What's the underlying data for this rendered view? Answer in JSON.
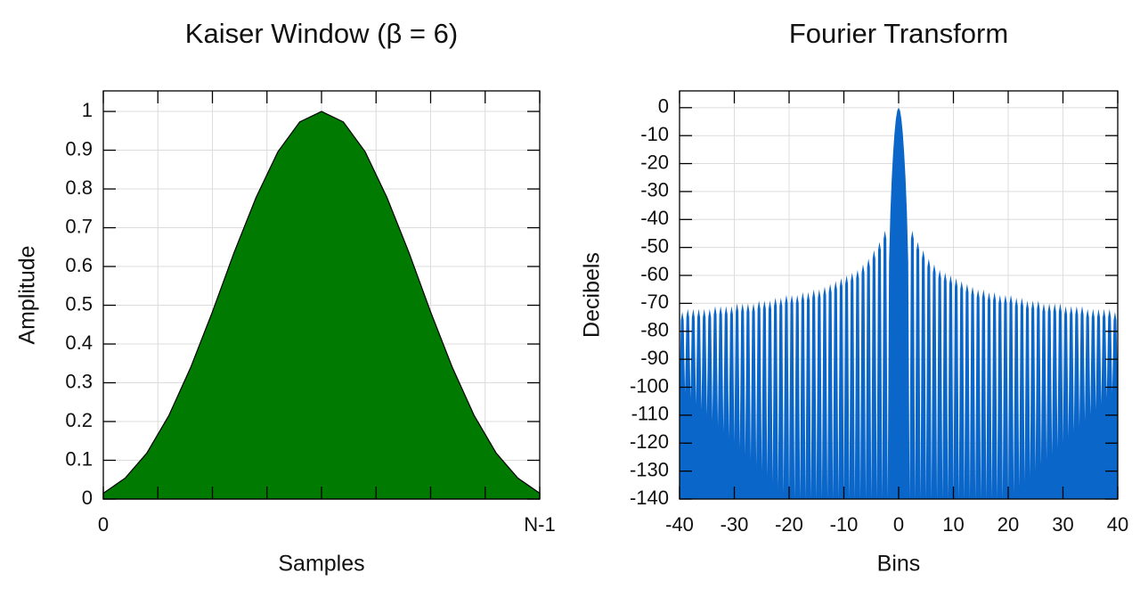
{
  "chart_data": [
    {
      "type": "area",
      "title": "Kaiser Window (β = 6)",
      "xlabel": "Samples",
      "ylabel": "Amplitude",
      "color": "#007a00",
      "grid": true,
      "x": [
        0,
        1,
        2,
        3,
        4,
        5,
        6,
        7,
        8,
        9,
        10,
        11,
        12,
        13,
        14,
        15,
        16,
        17,
        18,
        19,
        20
      ],
      "values": [
        0.015,
        0.054,
        0.119,
        0.215,
        0.339,
        0.483,
        0.637,
        0.778,
        0.896,
        0.973,
        1,
        0.973,
        0.896,
        0.778,
        0.637,
        0.483,
        0.339,
        0.215,
        0.119,
        0.054,
        0.015
      ],
      "xlim": [
        0,
        20
      ],
      "xticks": [
        0,
        {
          "value": 20,
          "label": "N-1"
        }
      ],
      "x_grid": [
        2.5,
        5,
        7.5,
        10,
        12.5,
        15,
        17.5
      ],
      "ylim": [
        0,
        1.053
      ],
      "yticks": [
        0,
        0.1,
        0.2,
        0.3,
        0.4,
        0.5,
        0.6,
        0.7,
        0.8,
        0.9,
        1
      ]
    },
    {
      "type": "area",
      "title": "Fourier Transform",
      "xlabel": "Bins",
      "ylabel": "Decibels",
      "color": "#0a66c8",
      "grid": true,
      "x": [
        -40,
        -39.75,
        -39.5,
        -39.25,
        -39,
        -38.75,
        -38.5,
        -38.25,
        -38,
        -37.75,
        -37.5,
        -37.25,
        -37,
        -36.75,
        -36.5,
        -36.25,
        -36,
        -35.75,
        -35.5,
        -35.25,
        -35,
        -34.75,
        -34.5,
        -34.25,
        -34,
        -33.75,
        -33.5,
        -33.25,
        -33,
        -32.75,
        -32.5,
        -32.25,
        -32,
        -31.75,
        -31.5,
        -31.25,
        -31,
        -30.75,
        -30.5,
        -30.25,
        -30,
        -29.75,
        -29.5,
        -29.25,
        -29,
        -28.75,
        -28.5,
        -28.25,
        -28,
        -27.75,
        -27.5,
        -27.25,
        -27,
        -26.75,
        -26.5,
        -26.25,
        -26,
        -25.75,
        -25.5,
        -25.25,
        -25,
        -24.75,
        -24.5,
        -24.25,
        -24,
        -23.75,
        -23.5,
        -23.25,
        -23,
        -22.75,
        -22.5,
        -22.25,
        -22,
        -21.75,
        -21.5,
        -21.25,
        -21,
        -20.75,
        -20.5,
        -20.25,
        -20,
        -19.75,
        -19.5,
        -19.25,
        -19,
        -18.75,
        -18.5,
        -18.25,
        -18,
        -17.75,
        -17.5,
        -17.25,
        -17,
        -16.75,
        -16.5,
        -16.25,
        -16,
        -15.75,
        -15.5,
        -15.25,
        -15,
        -14.75,
        -14.5,
        -14.25,
        -14,
        -13.75,
        -13.5,
        -13.25,
        -13,
        -12.75,
        -12.5,
        -12.25,
        -12,
        -11.75,
        -11.5,
        -11.25,
        -11,
        -10.75,
        -10.5,
        -10.25,
        -10,
        -9.75,
        -9.5,
        -9.25,
        -9,
        -8.75,
        -8.5,
        -8.25,
        -8,
        -7.75,
        -7.5,
        -7.25,
        -7,
        -6.75,
        -6.5,
        -6.25,
        -6,
        -5.75,
        -5.5,
        -5.25,
        -5,
        -4.75,
        -4.5,
        -4.25,
        -4,
        -3.75,
        -3.5,
        -3.25,
        -3,
        -2.75,
        -2.5,
        -2.25,
        -2,
        -1.75,
        -1.5,
        -1.25,
        -1,
        -0.75,
        -0.5,
        -0.25,
        0,
        0.25,
        0.5,
        0.75,
        1,
        1.25,
        1.5,
        1.75,
        2,
        2.25,
        2.5,
        2.75,
        3,
        3.25,
        3.5,
        3.75,
        4,
        4.25,
        4.5,
        4.75,
        5,
        5.25,
        5.5,
        5.75,
        6,
        6.25,
        6.5,
        6.75,
        7,
        7.25,
        7.5,
        7.75,
        8,
        8.25,
        8.5,
        8.75,
        9,
        9.25,
        9.5,
        9.75,
        10,
        10.25,
        10.5,
        10.75,
        11,
        11.25,
        11.5,
        11.75,
        12,
        12.25,
        12.5,
        12.75,
        13,
        13.25,
        13.5,
        13.75,
        14,
        14.25,
        14.5,
        14.75,
        15,
        15.25,
        15.5,
        15.75,
        16,
        16.25,
        16.5,
        16.75,
        17,
        17.25,
        17.5,
        17.75,
        18,
        18.25,
        18.5,
        18.75,
        19,
        19.25,
        19.5,
        19.75,
        20,
        20.25,
        20.5,
        20.75,
        21,
        21.25,
        21.5,
        21.75,
        22,
        22.25,
        22.5,
        22.75,
        23,
        23.25,
        23.5,
        23.75,
        24,
        24.25,
        24.5,
        24.75,
        25,
        25.25,
        25.5,
        25.75,
        26,
        26.25,
        26.5,
        26.75,
        27,
        27.25,
        27.5,
        27.75,
        28,
        28.25,
        28.5,
        28.75,
        29,
        29.25,
        29.5,
        29.75,
        30,
        30.25,
        30.5,
        30.75,
        31,
        31.25,
        31.5,
        31.75,
        32,
        32.25,
        32.5,
        32.75,
        33,
        33.25,
        33.5,
        33.75,
        34,
        34.25,
        34.5,
        34.75,
        35,
        35.25,
        35.5,
        35.75,
        36,
        36.25,
        36.5,
        36.75,
        37,
        37.25,
        37.5,
        37.75,
        38,
        38.25,
        38.5,
        38.75,
        39,
        39.25,
        39.5,
        39.75,
        40
      ],
      "values": [
        -100,
        -76,
        -73,
        -76,
        -102,
        -75,
        -72,
        -75,
        -104,
        -75,
        -72,
        -75,
        -106,
        -75,
        -72,
        -75,
        -108,
        -75,
        -72,
        -75,
        -110,
        -75,
        -72,
        -75,
        -112,
        -74,
        -71,
        -74,
        -114,
        -74,
        -71,
        -74,
        -116,
        -74,
        -71,
        -74,
        -118,
        -74,
        -71,
        -74,
        -120,
        -73,
        -70,
        -73,
        -122,
        -73,
        -70,
        -73,
        -124,
        -73,
        -70,
        -73,
        -126,
        -73,
        -70,
        -73,
        -128,
        -72,
        -69,
        -72,
        -130,
        -72,
        -69,
        -72,
        -132,
        -72,
        -69,
        -72,
        -134,
        -71,
        -68,
        -71,
        -136,
        -71,
        -68,
        -71,
        -138,
        -70,
        -67,
        -70,
        -140,
        -70,
        -67,
        -70,
        -140,
        -70,
        -67,
        -70,
        -140,
        -69,
        -66,
        -69,
        -140,
        -69,
        -66,
        -69,
        -140,
        -68,
        -65,
        -68,
        -140,
        -68,
        -65,
        -68,
        -140,
        -67,
        -64,
        -67,
        -140,
        -66,
        -63,
        -66,
        -140,
        -65,
        -62,
        -65,
        -140,
        -64,
        -61,
        -64,
        -140,
        -63,
        -60,
        -63,
        -140,
        -62,
        -59,
        -62,
        -140,
        -61,
        -58,
        -61,
        -140,
        -59,
        -56,
        -59,
        -140,
        -57,
        -54,
        -57,
        -140,
        -54,
        -51,
        -54,
        -140,
        -51,
        -48,
        -51,
        -140,
        -47,
        -44,
        -47,
        -140,
        -55,
        -37,
        -25,
        -16,
        -9,
        -4,
        -1,
        0,
        -1,
        -4,
        -9,
        -16,
        -25,
        -37,
        -55,
        -140,
        -47,
        -44,
        -47,
        -140,
        -51,
        -48,
        -51,
        -140,
        -54,
        -51,
        -54,
        -140,
        -57,
        -54,
        -57,
        -140,
        -59,
        -56,
        -59,
        -140,
        -61,
        -58,
        -61,
        -140,
        -62,
        -59,
        -62,
        -140,
        -63,
        -60,
        -63,
        -140,
        -64,
        -61,
        -64,
        -140,
        -65,
        -62,
        -65,
        -140,
        -66,
        -63,
        -66,
        -140,
        -67,
        -64,
        -67,
        -140,
        -68,
        -65,
        -68,
        -140,
        -68,
        -65,
        -68,
        -140,
        -69,
        -66,
        -69,
        -140,
        -69,
        -66,
        -69,
        -140,
        -70,
        -67,
        -70,
        -140,
        -70,
        -67,
        -70,
        -140,
        -70,
        -67,
        -70,
        -138,
        -71,
        -68,
        -71,
        -136,
        -71,
        -68,
        -71,
        -134,
        -72,
        -69,
        -72,
        -132,
        -72,
        -69,
        -72,
        -130,
        -72,
        -69,
        -72,
        -128,
        -73,
        -70,
        -73,
        -126,
        -73,
        -70,
        -73,
        -124,
        -73,
        -70,
        -73,
        -122,
        -73,
        -70,
        -73,
        -120,
        -74,
        -71,
        -74,
        -118,
        -74,
        -71,
        -74,
        -116,
        -74,
        -71,
        -74,
        -114,
        -74,
        -71,
        -74,
        -112,
        -75,
        -72,
        -75,
        -110,
        -75,
        -72,
        -75,
        -108,
        -75,
        -72,
        -75,
        -106,
        -75,
        -72,
        -75,
        -104,
        -75,
        -72,
        -75,
        -102,
        -76,
        -73,
        -76,
        -100
      ],
      "xlim": [
        -40,
        40
      ],
      "xticks": [
        -40,
        -30,
        -20,
        -10,
        0,
        10,
        20,
        30,
        40
      ],
      "ylim": [
        -140,
        6
      ],
      "yticks": [
        0,
        -10,
        -20,
        -30,
        -40,
        -50,
        -60,
        -70,
        -80,
        -90,
        -100,
        -110,
        -120,
        -130,
        -140
      ]
    }
  ]
}
